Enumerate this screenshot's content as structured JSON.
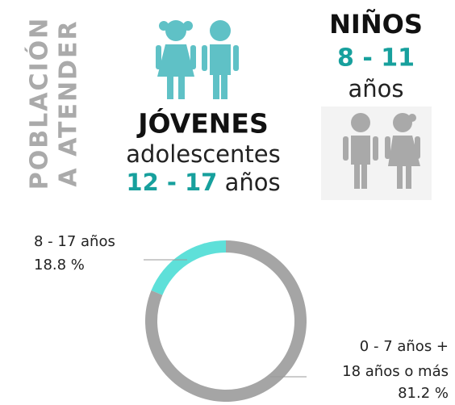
{
  "side_title": [
    "POBLACIÓN",
    "A ATENDER"
  ],
  "jovenes": {
    "title": "JÓVENES",
    "subtitle": "adolescentes",
    "range": "12 - 17",
    "unit": "años"
  },
  "ninos": {
    "title": "NIÑOS",
    "range": "8 - 11",
    "unit": "años"
  },
  "chart_data": {
    "type": "donut",
    "categories": [
      [
        "8 - 17 años"
      ],
      [
        "0 - 7 años +",
        "18 años o más"
      ]
    ],
    "values": [
      18.8,
      81.2
    ],
    "value_labels": [
      "18.8 %",
      "81.2 %"
    ],
    "colors": [
      "#5ee0d9",
      "#a5a5a5"
    ]
  }
}
